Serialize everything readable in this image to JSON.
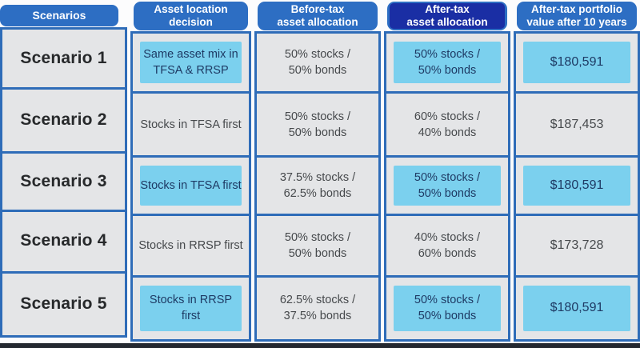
{
  "header": {
    "tabs": [
      {
        "label": "Scenarios",
        "emphasized": false
      },
      {
        "label": "Asset location\ndecision",
        "emphasized": false
      },
      {
        "label": "Before-tax\nasset allocation",
        "emphasized": false
      },
      {
        "label": "After-tax\nasset allocation",
        "emphasized": true
      },
      {
        "label": "After-tax portfolio\nvalue after 10 years",
        "emphasized": false
      }
    ]
  },
  "columns": [
    {
      "id": "scenarios",
      "cells": [
        {
          "text": "Scenario 1",
          "highlight": false
        },
        {
          "text": "Scenario 2",
          "highlight": false
        },
        {
          "text": "Scenario 3",
          "highlight": false
        },
        {
          "text": "Scenario 4",
          "highlight": false
        },
        {
          "text": "Scenario 5",
          "highlight": false
        }
      ]
    },
    {
      "id": "asset-location-decision",
      "cells": [
        {
          "text": "Same asset mix in\nTFSA & RRSP",
          "highlight": true
        },
        {
          "text": "Stocks in TFSA first",
          "highlight": false
        },
        {
          "text": "Stocks in TFSA first",
          "highlight": true
        },
        {
          "text": "Stocks in RRSP first",
          "highlight": false
        },
        {
          "text": "Stocks in RRSP first",
          "highlight": true
        }
      ]
    },
    {
      "id": "before-tax-asset-allocation",
      "cells": [
        {
          "text": "50% stocks /\n50% bonds",
          "highlight": false
        },
        {
          "text": "50% stocks /\n50% bonds",
          "highlight": false
        },
        {
          "text": "37.5% stocks /\n62.5% bonds",
          "highlight": false
        },
        {
          "text": "50% stocks /\n50% bonds",
          "highlight": false
        },
        {
          "text": "62.5% stocks /\n37.5% bonds",
          "highlight": false
        }
      ]
    },
    {
      "id": "after-tax-asset-allocation",
      "cells": [
        {
          "text": "50% stocks /\n50% bonds",
          "highlight": true
        },
        {
          "text": "60% stocks /\n40% bonds",
          "highlight": false
        },
        {
          "text": "50% stocks /\n50% bonds",
          "highlight": true
        },
        {
          "text": "40% stocks /\n60% bonds",
          "highlight": false
        },
        {
          "text": "50% stocks /\n50% bonds",
          "highlight": true
        }
      ]
    },
    {
      "id": "after-tax-portfolio-value",
      "cells": [
        {
          "text": "$180,591",
          "highlight": true
        },
        {
          "text": "$187,453",
          "highlight": false
        },
        {
          "text": "$180,591",
          "highlight": true
        },
        {
          "text": "$173,728",
          "highlight": false
        },
        {
          "text": "$180,591",
          "highlight": true
        }
      ]
    }
  ],
  "colors": {
    "tab_blue": "#2d6ec3",
    "border_blue": "#2e6cb8",
    "emphasis_navy": "#1a2ea4",
    "cell_gray": "#e4e5e7",
    "highlight_cyan": "#7bd0ee",
    "highlight_text_navy": "#1e3a64",
    "cell_text_gray": "#46494c",
    "scenario_text": "#27292b",
    "bottom_bar_dark": "#242830"
  }
}
